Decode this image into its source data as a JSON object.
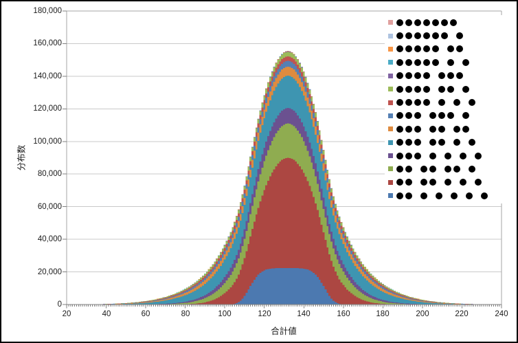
{
  "window": {
    "background": "#ffffff",
    "frame_border_color": "#000000"
  },
  "chart_data": {
    "type": "area",
    "stacked": true,
    "title": "",
    "xlabel": "合計値",
    "ylabel": "分布数",
    "grid": true,
    "x_axis": {
      "min": 20,
      "max": 240,
      "major_tick": 20,
      "minor_tick": 1,
      "tick_labels": [
        "20",
        "40",
        "60",
        "80",
        "100",
        "120",
        "140",
        "160",
        "180",
        "200",
        "220",
        "240"
      ]
    },
    "y_axis": {
      "min": 0,
      "max": 180000,
      "major_tick": 20000,
      "tick_labels": [
        "0",
        "20,000",
        "40,000",
        "60,000",
        "80,000",
        "100,000",
        "120,000",
        "140,000",
        "160,000",
        "180,000"
      ]
    },
    "legend_position": "top-right",
    "legend_note": "legend lists series top-of-stack first; labels are dot patterns (partitions of 7)",
    "peak_x_approx": 132,
    "peak_total_approx": 155500,
    "series_bottom_to_top": [
      {
        "label": "●● ● ● ● ● ●",
        "groups": [
          2,
          1,
          1,
          1,
          1,
          1
        ],
        "color": "#4C79B0",
        "curve": {
          "kind": "plateau",
          "peak": 22300,
          "center": 131.5,
          "width": 20,
          "power": 5
        }
      },
      {
        "label": "●● ●● ● ● ●",
        "groups": [
          2,
          2,
          1,
          1,
          1
        ],
        "color": "#AC4742",
        "curve": {
          "kind": "gauss",
          "peak": 67700,
          "center": 132,
          "sigma": 15
        }
      },
      {
        "label": "●● ●● ●● ●",
        "groups": [
          2,
          2,
          2,
          1
        ],
        "color": "#8FAC50",
        "curve": {
          "kind": "gauss",
          "peak": 21000,
          "center": 132,
          "sigma": 20.5
        }
      },
      {
        "label": "●●● ● ● ● ●",
        "groups": [
          3,
          1,
          1,
          1,
          1
        ],
        "color": "#6B5190",
        "curve": {
          "kind": "gauss",
          "peak": 9500,
          "center": 132,
          "sigma": 23
        }
      },
      {
        "label": "●●● ●● ● ●",
        "groups": [
          3,
          2,
          1,
          1
        ],
        "color": "#3E95B1",
        "curve": {
          "kind": "gauss",
          "peak": 19800,
          "center": 132,
          "sigma": 29
        }
      },
      {
        "label": "●●● ●● ●●",
        "groups": [
          3,
          2,
          2
        ],
        "color": "#DE8B3F",
        "curve": {
          "kind": "gauss",
          "peak": 5600,
          "center": 132,
          "sigma": 31
        }
      },
      {
        "label": "●●● ●●● ●",
        "groups": [
          3,
          3,
          1
        ],
        "color": "#5580B4",
        "curve": {
          "kind": "gauss",
          "peak": 3500,
          "center": 132,
          "sigma": 31.5
        }
      },
      {
        "label": "●●●● ● ● ●",
        "groups": [
          4,
          1,
          1,
          1
        ],
        "color": "#C05450",
        "curve": {
          "kind": "gauss",
          "peak": 2800,
          "center": 132,
          "sigma": 32
        }
      },
      {
        "label": "●●●● ●● ●",
        "groups": [
          4,
          2,
          1
        ],
        "color": "#9CBB59",
        "curve": {
          "kind": "gauss",
          "peak": 2800,
          "center": 132,
          "sigma": 32.5
        }
      },
      {
        "label": "●●●● ●●●",
        "groups": [
          4,
          3
        ],
        "color": "#8064A2",
        "curve": {
          "kind": "gauss",
          "peak": 250,
          "center": 132,
          "sigma": 33
        }
      },
      {
        "label": "●●●●● ● ●",
        "groups": [
          5,
          1,
          1
        ],
        "color": "#4BACC6",
        "curve": {
          "kind": "gauss",
          "peak": 120,
          "center": 132,
          "sigma": 35
        }
      },
      {
        "label": "●●●●● ●●",
        "groups": [
          5,
          2
        ],
        "color": "#F79646",
        "curve": {
          "kind": "gauss",
          "peak": 80,
          "center": 132,
          "sigma": 35
        }
      },
      {
        "label": "●●●●●● ●",
        "groups": [
          6,
          1
        ],
        "color": "#AEC3E0",
        "curve": {
          "kind": "gauss",
          "peak": 30,
          "center": 132,
          "sigma": 37
        }
      },
      {
        "label": "●●●●●●●",
        "groups": [
          7
        ],
        "color": "#E0A09E",
        "curve": {
          "kind": "gauss",
          "peak": 15,
          "center": 132,
          "sigma": 40
        }
      }
    ],
    "style_colors": {
      "gridline": "#C9C9C9",
      "plot_border": "#A6A6A6",
      "axis_line": "#808080",
      "tick": "#808080",
      "dot": "#000000"
    }
  }
}
